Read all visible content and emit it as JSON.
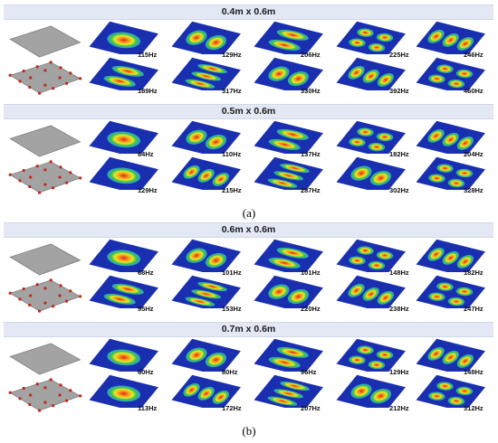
{
  "part_a": {
    "caption": "(a)",
    "groups": [
      {
        "title": "0.4m x 0.6m",
        "rows": [
          [
            "115Hz",
            "129Hz",
            "206Hz",
            "225Hz",
            "246Hz"
          ],
          [
            "189Hz",
            "317Hz",
            "330Hz",
            "392Hz",
            "460Hz"
          ]
        ]
      },
      {
        "title": "0.5m x 0.6m",
        "rows": [
          [
            "84Hz",
            "110Hz",
            "137Hz",
            "182Hz",
            "204Hz"
          ],
          [
            "129Hz",
            "215Hz",
            "287Hz",
            "302Hz",
            "328Hz"
          ]
        ]
      }
    ]
  },
  "part_b": {
    "caption": "(b)",
    "groups": [
      {
        "title": "0.6m x 0.6m",
        "rows": [
          [
            "68Hz",
            "101Hz",
            "101Hz",
            "148Hz",
            "182Hz"
          ],
          [
            "95Hz",
            "153Hz",
            "220Hz",
            "238Hz",
            "247Hz"
          ]
        ]
      },
      {
        "title": "0.7m x 0.6m",
        "rows": [
          [
            "60Hz",
            "80Hz",
            "96Hz",
            "129Hz",
            "148Hz"
          ],
          [
            "113Hz",
            "172Hz",
            "207Hz",
            "212Hz",
            "312Hz"
          ]
        ]
      }
    ]
  },
  "colors": {
    "band": "#e3e8f4",
    "plate_gray": "#a3a3a3",
    "mode_low": "#1a2fb0",
    "mode_high": "#e2211c",
    "fixing_point": "#c0281e"
  }
}
